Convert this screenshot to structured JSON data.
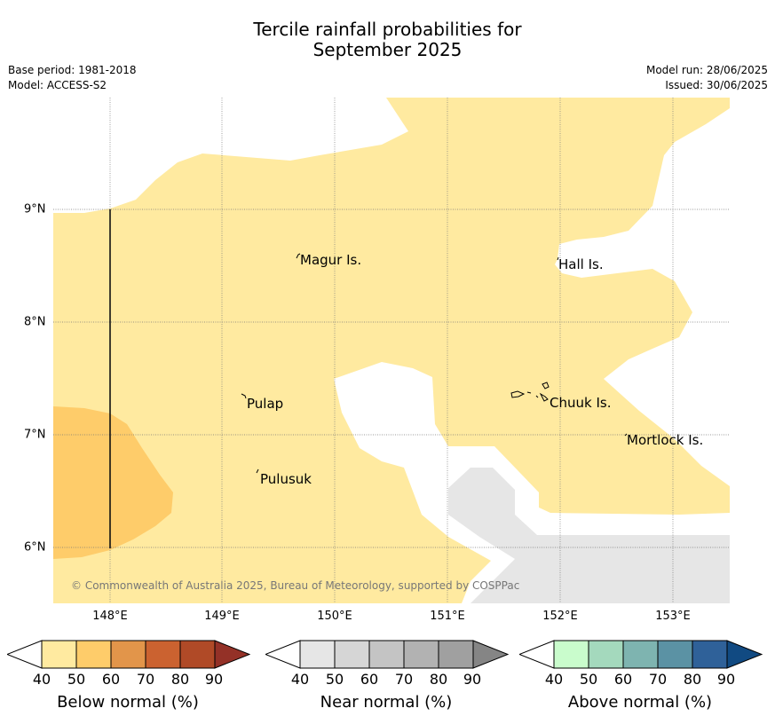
{
  "title": {
    "line1": "Tercile rainfall probabilities for",
    "line2": "September 2025"
  },
  "meta_left": {
    "base_period": "Base period: 1981-2018",
    "model": "Model: ACCESS-S2"
  },
  "meta_right": {
    "model_run": "Model run: 28/06/2025",
    "issued": "Issued: 30/06/2025"
  },
  "map": {
    "lon_labels": [
      "148°E",
      "149°E",
      "150°E",
      "151°E",
      "152°E",
      "153°E"
    ],
    "lat_labels": [
      "9°N",
      "8°N",
      "7°N",
      "6°N"
    ],
    "places": [
      "Magur Is.",
      "Hall Is.",
      "Pulap",
      "Chuuk Is.",
      "Mortlock Is.",
      "Pulusuk"
    ],
    "copyright": "© Commonwealth of Australia 2025, Bureau of Meteorology, supported by COSPPac",
    "colors": {
      "below_40_50": "#ffeaa0",
      "below_50_60": "#fecc6a",
      "near_40_50": "#e6e6e6",
      "land": "#000000"
    }
  },
  "colorbars": [
    {
      "title": "Below normal (%)",
      "ticks": [
        "40",
        "50",
        "60",
        "70",
        "80",
        "90"
      ],
      "colors": [
        "#ffffff",
        "#ffeaa0",
        "#fecc6a",
        "#e2954a",
        "#cb6230",
        "#b04a27",
        "#943127"
      ]
    },
    {
      "title": "Near normal (%)",
      "ticks": [
        "40",
        "50",
        "60",
        "70",
        "80",
        "90"
      ],
      "colors": [
        "#ffffff",
        "#e6e6e6",
        "#d6d6d6",
        "#c4c4c4",
        "#b2b2b2",
        "#a0a0a0",
        "#858585"
      ]
    },
    {
      "title": "Above normal (%)",
      "ticks": [
        "40",
        "50",
        "60",
        "70",
        "80",
        "90"
      ],
      "colors": [
        "#ffffff",
        "#c9fccc",
        "#a4d9bd",
        "#7eb4b0",
        "#5b92a4",
        "#2f6199",
        "#114a82"
      ]
    }
  ]
}
